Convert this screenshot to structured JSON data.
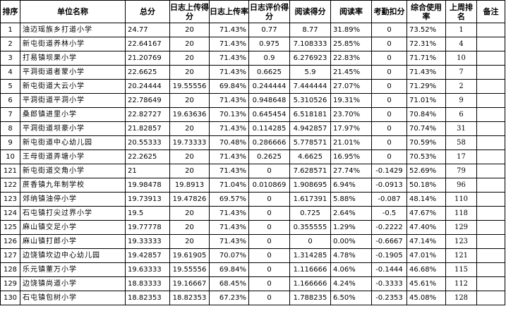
{
  "headers": [
    "排序",
    "单位名称",
    "总分",
    "日志上传得分",
    "日志上传率",
    "日志评价得分",
    "阅读得分",
    "阅读率",
    "考勤扣分",
    "综合使用率",
    "上周排名",
    "备注"
  ],
  "rows": [
    {
      "seq": "1",
      "name": "油迈瑶族乡打道小学",
      "total": "24.77",
      "log_score": "20",
      "log_rate": "71.43%",
      "eval_score": "0.77",
      "read_score": "8.77",
      "read_rate": "31.89%",
      "deduct": "0",
      "usage": "73.52%",
      "last_rank": "1",
      "note": ""
    },
    {
      "seq": "2",
      "name": "新屯街道养林小学",
      "total": "22.64167",
      "log_score": "20",
      "log_rate": "71.43%",
      "eval_score": "0.975",
      "read_score": "7.108333",
      "read_rate": "25.85%",
      "deduct": "0",
      "usage": "72.31%",
      "last_rank": "4",
      "note": ""
    },
    {
      "seq": "3",
      "name": "打易镇坝果小学",
      "total": "21.20769",
      "log_score": "20",
      "log_rate": "71.43%",
      "eval_score": "0.9",
      "read_score": "6.276923",
      "read_rate": "22.83%",
      "deduct": "0",
      "usage": "71.71%",
      "last_rank": "10",
      "note": ""
    },
    {
      "seq": "4",
      "name": "平洞街道者蒙小学",
      "total": "22.6625",
      "log_score": "20",
      "log_rate": "71.43%",
      "eval_score": "0.6625",
      "read_score": "5.9",
      "read_rate": "21.45%",
      "deduct": "0",
      "usage": "71.43%",
      "last_rank": "7",
      "note": ""
    },
    {
      "seq": "5",
      "name": "新屯街道大云小学",
      "total": "20.24444",
      "log_score": "19.55556",
      "log_rate": "69.84%",
      "eval_score": "0.244444",
      "read_score": "7.444444",
      "read_rate": "27.07%",
      "deduct": "0",
      "usage": "71.29%",
      "last_rank": "2",
      "note": ""
    },
    {
      "seq": "6",
      "name": "平洞街道平洞小学",
      "total": "22.78649",
      "log_score": "20",
      "log_rate": "71.43%",
      "eval_score": "0.948648",
      "read_score": "5.310526",
      "read_rate": "19.31%",
      "deduct": "0",
      "usage": "71.01%",
      "last_rank": "9",
      "note": ""
    },
    {
      "seq": "7",
      "name": "桑郎镇进里小学",
      "total": "22.82727",
      "log_score": "19.63636",
      "log_rate": "70.13%",
      "eval_score": "0.645454",
      "read_score": "6.518181",
      "read_rate": "23.70%",
      "deduct": "0",
      "usage": "70.84%",
      "last_rank": "6",
      "note": ""
    },
    {
      "seq": "8",
      "name": "平洞街道坝豪小学",
      "total": "21.82857",
      "log_score": "20",
      "log_rate": "71.43%",
      "eval_score": "0.114285",
      "read_score": "4.942857",
      "read_rate": "17.97%",
      "deduct": "0",
      "usage": "70.74%",
      "last_rank": "31",
      "note": ""
    },
    {
      "seq": "9",
      "name": "新屯街道中心幼儿园",
      "total": "20.55333",
      "log_score": "19.73333",
      "log_rate": "70.48%",
      "eval_score": "0.286666",
      "read_score": "5.778571",
      "read_rate": "21.01%",
      "deduct": "0",
      "usage": "70.59%",
      "last_rank": "58",
      "note": ""
    },
    {
      "seq": "10",
      "name": "王母街道弄塘小学",
      "total": "22.2625",
      "log_score": "20",
      "log_rate": "71.43%",
      "eval_score": "0.2625",
      "read_score": "4.6625",
      "read_rate": "16.95%",
      "deduct": "0",
      "usage": "70.53%",
      "last_rank": "17",
      "note": ""
    },
    {
      "seq": "121",
      "name": "新屯街道交角小学",
      "total": "21",
      "log_score": "20",
      "log_rate": "71.43%",
      "eval_score": "0",
      "read_score": "7.628571",
      "read_rate": "27.74%",
      "deduct": "-0.1429",
      "usage": "52.69%",
      "last_rank": "79",
      "note": ""
    },
    {
      "seq": "122",
      "name": "蔗香镇九年制学校",
      "total": "19.98478",
      "log_score": "19.8913",
      "log_rate": "71.04%",
      "eval_score": "0.010869",
      "read_score": "1.908695",
      "read_rate": "6.94%",
      "deduct": "-0.0913",
      "usage": "50.18%",
      "last_rank": "96",
      "note": ""
    },
    {
      "seq": "123",
      "name": "郊纳镇油停小学",
      "total": "19.73913",
      "log_score": "19.47826",
      "log_rate": "69.57%",
      "eval_score": "0",
      "read_score": "1.617391",
      "read_rate": "5.88%",
      "deduct": "-0.087",
      "usage": "48.14%",
      "last_rank": "110",
      "note": ""
    },
    {
      "seq": "124",
      "name": "石屯镇打尖过界小学",
      "total": "19.5",
      "log_score": "20",
      "log_rate": "71.43%",
      "eval_score": "0",
      "read_score": "0.725",
      "read_rate": "2.64%",
      "deduct": "-0.5",
      "usage": "47.67%",
      "last_rank": "118",
      "note": ""
    },
    {
      "seq": "125",
      "name": "麻山镇交足小学",
      "total": "19.77778",
      "log_score": "20",
      "log_rate": "71.43%",
      "eval_score": "0",
      "read_score": "0.355555",
      "read_rate": "1.29%",
      "deduct": "-0.2222",
      "usage": "47.40%",
      "last_rank": "129",
      "note": ""
    },
    {
      "seq": "126",
      "name": "麻山镇打郎小学",
      "total": "19.33333",
      "log_score": "20",
      "log_rate": "71.43%",
      "eval_score": "0",
      "read_score": "0",
      "read_rate": "0.00%",
      "deduct": "-0.6667",
      "usage": "47.14%",
      "last_rank": "123",
      "note": ""
    },
    {
      "seq": "127",
      "name": "边饶镇坎边中心幼儿园",
      "total": "19.42857",
      "log_score": "19.61905",
      "log_rate": "70.07%",
      "eval_score": "0",
      "read_score": "1.314285",
      "read_rate": "4.78%",
      "deduct": "-0.1905",
      "usage": "47.01%",
      "last_rank": "121",
      "note": ""
    },
    {
      "seq": "128",
      "name": "乐元镇董万小学",
      "total": "19.63333",
      "log_score": "19.55556",
      "log_rate": "69.84%",
      "eval_score": "0",
      "read_score": "1.116666",
      "read_rate": "4.06%",
      "deduct": "-0.1444",
      "usage": "46.68%",
      "last_rank": "115",
      "note": ""
    },
    {
      "seq": "129",
      "name": "边饶镇尚道小学",
      "total": "18.83333",
      "log_score": "19.16667",
      "log_rate": "68.45%",
      "eval_score": "0",
      "read_score": "1.166666",
      "read_rate": "4.24%",
      "deduct": "-0.3333",
      "usage": "45.61%",
      "last_rank": "112",
      "note": ""
    },
    {
      "seq": "130",
      "name": "石屯镇包树小学",
      "total": "18.82353",
      "log_score": "18.82353",
      "log_rate": "67.23%",
      "eval_score": "0",
      "read_score": "1.788235",
      "read_rate": "6.50%",
      "deduct": "-0.2353",
      "usage": "45.08%",
      "last_rank": "128",
      "note": ""
    }
  ]
}
